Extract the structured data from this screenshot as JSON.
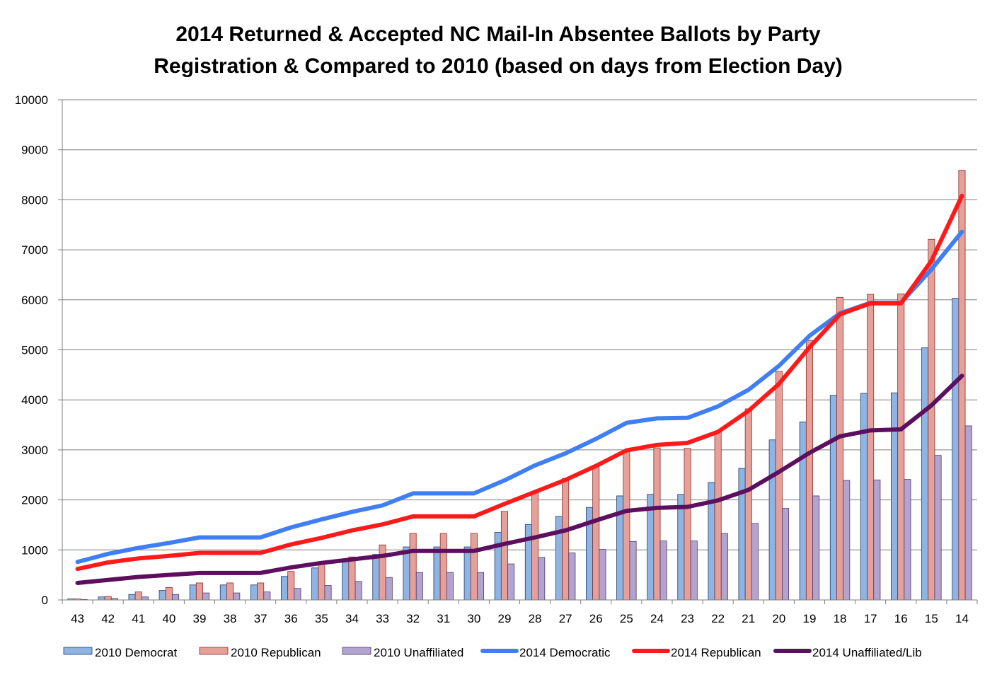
{
  "chart_data": {
    "type": "bar",
    "title_lines": [
      "2014 Returned & Accepted NC Mail-In Absentee Ballots by Party",
      "Registration & Compared to 2010 (based on days from Election Day)"
    ],
    "xlabel": "",
    "ylabel": "",
    "ylim": [
      0,
      10000
    ],
    "yticks": [
      0,
      1000,
      2000,
      3000,
      4000,
      5000,
      6000,
      7000,
      8000,
      9000,
      10000
    ],
    "grid": true,
    "legend_position": "bottom",
    "categories": [
      "43",
      "42",
      "41",
      "40",
      "39",
      "38",
      "37",
      "36",
      "35",
      "34",
      "33",
      "32",
      "31",
      "30",
      "29",
      "28",
      "27",
      "26",
      "25",
      "24",
      "23",
      "22",
      "21",
      "20",
      "19",
      "18",
      "17",
      "16",
      "15",
      "14"
    ],
    "bar_series": [
      {
        "name": "2010 Democrat",
        "color": "#8db4e2",
        "stroke": "#1f3a6e",
        "values": [
          20,
          60,
          110,
          190,
          300,
          300,
          300,
          470,
          640,
          790,
          910,
          1060,
          1060,
          1060,
          1350,
          1510,
          1670,
          1850,
          2080,
          2110,
          2110,
          2350,
          2630,
          3200,
          3560,
          4090,
          4130,
          4140,
          5040,
          6030
        ]
      },
      {
        "name": "2010 Republican",
        "color": "#e6a09a",
        "stroke": "#8b2e2a",
        "values": [
          20,
          70,
          160,
          250,
          340,
          340,
          340,
          570,
          720,
          860,
          1100,
          1330,
          1330,
          1330,
          1770,
          2160,
          2430,
          2680,
          2970,
          3040,
          3030,
          3380,
          3820,
          4570,
          5190,
          6050,
          6110,
          6120,
          7210,
          8590
        ]
      },
      {
        "name": "2010 Unaffiliated",
        "color": "#b3a3cf",
        "stroke": "#4b3b6b",
        "values": [
          10,
          30,
          60,
          110,
          140,
          140,
          160,
          230,
          290,
          370,
          450,
          550,
          550,
          550,
          720,
          850,
          940,
          1010,
          1170,
          1180,
          1180,
          1330,
          1530,
          1830,
          2080,
          2390,
          2400,
          2410,
          2890,
          3480
        ]
      }
    ],
    "line_series": [
      {
        "name": "2014 Democratic",
        "color": "#3f7ff3",
        "values": [
          760,
          920,
          1040,
          1140,
          1250,
          1250,
          1250,
          1450,
          1610,
          1760,
          1890,
          2130,
          2130,
          2130,
          2390,
          2690,
          2930,
          3220,
          3540,
          3630,
          3640,
          3870,
          4200,
          4680,
          5280,
          5730,
          5940,
          5940,
          6610,
          7360
        ]
      },
      {
        "name": "2014 Republican",
        "color": "#ff1a1a",
        "values": [
          620,
          750,
          830,
          880,
          940,
          940,
          940,
          1110,
          1240,
          1390,
          1510,
          1670,
          1670,
          1670,
          1920,
          2160,
          2400,
          2680,
          2990,
          3100,
          3140,
          3360,
          3780,
          4320,
          5050,
          5710,
          5930,
          5930,
          6780,
          8080
        ]
      },
      {
        "name": "2014 Unaffiliated/Lib",
        "color": "#5c0f5f",
        "values": [
          340,
          400,
          460,
          500,
          540,
          540,
          540,
          650,
          740,
          810,
          880,
          980,
          980,
          980,
          1120,
          1250,
          1390,
          1590,
          1780,
          1840,
          1860,
          1990,
          2200,
          2560,
          2940,
          3270,
          3390,
          3410,
          3890,
          4480
        ]
      }
    ]
  }
}
